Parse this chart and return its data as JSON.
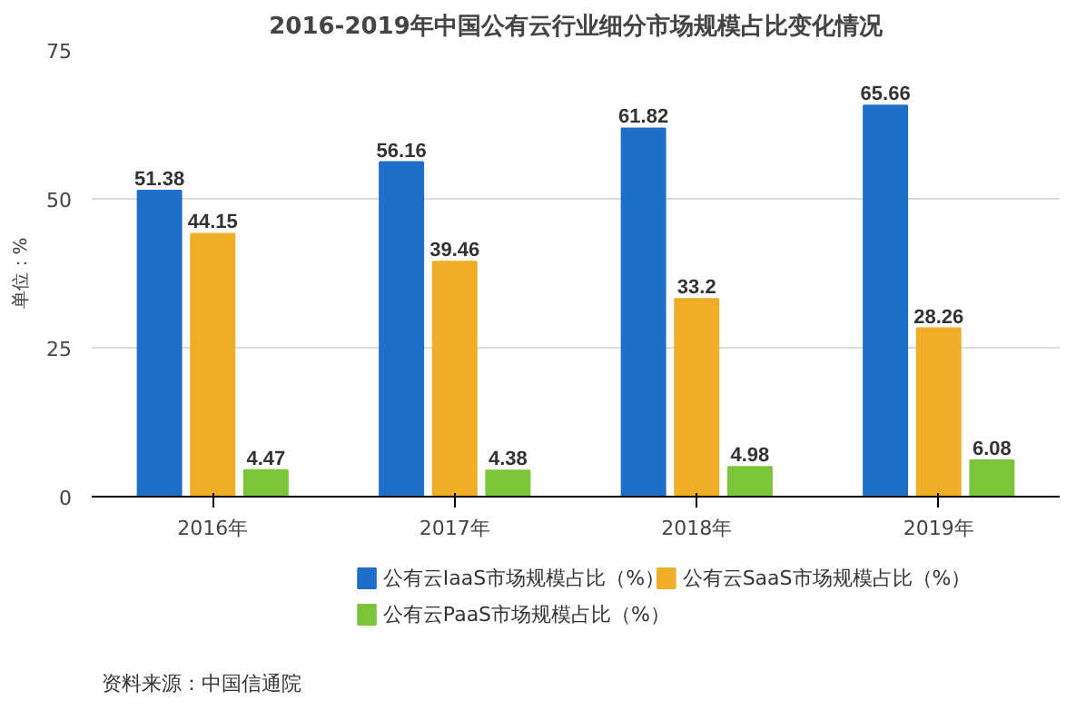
{
  "chart_data": {
    "type": "bar",
    "title": "2016-2019年中国公有云行业细分市场规模占比变化情况",
    "ylabel": "单位：%",
    "categories": [
      "2016年",
      "2017年",
      "2018年",
      "2019年"
    ],
    "series": [
      {
        "name": "公有云IaaS市场规模占比（%）",
        "color": "#1e6fc8",
        "values": [
          51.38,
          56.16,
          61.82,
          65.66
        ]
      },
      {
        "name": "公有云SaaS市场规模占比（%）",
        "color": "#f0ad28",
        "values": [
          44.15,
          39.46,
          33.2,
          28.26
        ]
      },
      {
        "name": "公有云PaaS市场规模占比（%）",
        "color": "#7cc53a",
        "values": [
          4.47,
          4.38,
          4.98,
          6.08
        ]
      }
    ],
    "ylim": [
      0,
      75
    ],
    "yticks": [
      0,
      25,
      50,
      75
    ],
    "grid": "y",
    "legend": "bottom",
    "data_labels": true,
    "annotations": [
      "资料来源：中国信通院"
    ]
  }
}
